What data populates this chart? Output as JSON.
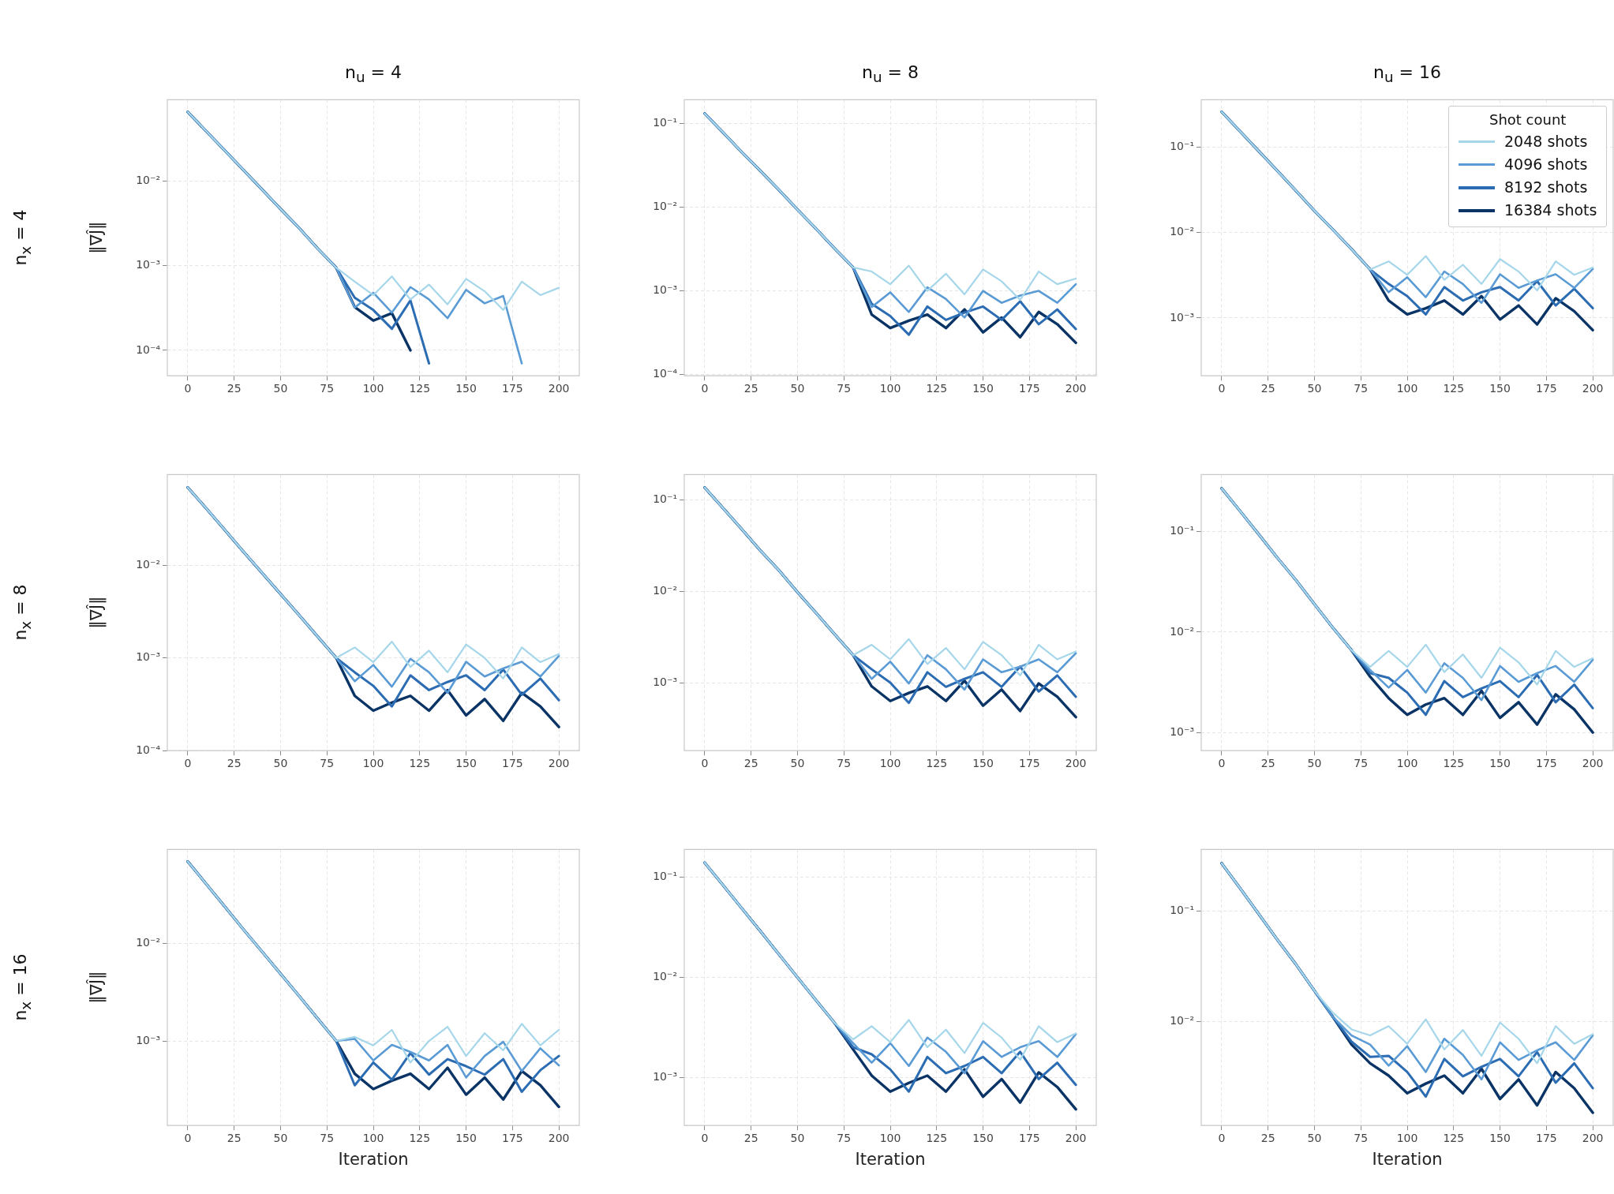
{
  "chart_data": [
    {
      "type": "line",
      "title": "n$_{u}$ = 4",
      "ylabel": "‖∇Ĵ‖",
      "annotations": [
        "n$_{x}$ = 4"
      ],
      "log": "y",
      "grid": true,
      "x": [
        0,
        10,
        20,
        30,
        40,
        50,
        60,
        70,
        80,
        90,
        100,
        110,
        120,
        130,
        140,
        150,
        160,
        170,
        180,
        190,
        200
      ],
      "xlim": [
        -11,
        211
      ],
      "xticks": [
        0,
        25,
        50,
        75,
        100,
        125,
        150,
        175,
        200
      ],
      "ylim": [
        5e-05,
        0.092
      ],
      "yticks": [
        {
          "value": 0.0001,
          "label": "10⁻⁴"
        },
        {
          "value": 0.001,
          "label": "10⁻³"
        },
        {
          "value": 0.01,
          "label": "10⁻²"
        }
      ],
      "series": [
        {
          "color": "#a6d6ea",
          "values": [
            0.066,
            0.039,
            0.023,
            0.0136,
            0.008,
            0.0047,
            0.0028,
            0.0016,
            0.00095,
            0.00065,
            0.00045,
            0.00075,
            0.0004,
            0.0006,
            0.00035,
            0.0007,
            0.0005,
            0.0003,
            0.00065,
            0.00045,
            0.00055
          ]
        },
        {
          "color": "#5b9bd5",
          "values": [
            0.066,
            0.039,
            0.023,
            0.0136,
            0.008,
            0.0047,
            0.0028,
            0.0016,
            0.00095,
            0.00032,
            0.00048,
            0.00028,
            0.00056,
            0.0004,
            0.00024,
            0.00052,
            0.00036,
            0.00044,
            7e-05,
            null,
            null
          ]
        },
        {
          "color": "#2b6cb3",
          "values": [
            0.066,
            0.039,
            0.023,
            0.0136,
            0.008,
            0.0047,
            0.0028,
            0.0016,
            0.00095,
            0.00042,
            0.0003,
            0.00018,
            0.00039,
            7e-05,
            null,
            null,
            null,
            null,
            null,
            null,
            null
          ]
        },
        {
          "color": "#0b3466",
          "values": [
            0.066,
            0.039,
            0.023,
            0.0136,
            0.008,
            0.0047,
            0.0028,
            0.0016,
            0.00095,
            0.000325,
            0.000225,
            0.000275,
            0.0001,
            null,
            null,
            null,
            null,
            null,
            null,
            null,
            null
          ]
        }
      ]
    },
    {
      "type": "line",
      "title": "n$_{u}$ = 8",
      "log": "y",
      "grid": true,
      "x": [
        0,
        10,
        20,
        30,
        40,
        50,
        60,
        70,
        80,
        90,
        100,
        110,
        120,
        130,
        140,
        150,
        160,
        170,
        180,
        190,
        200
      ],
      "xlim": [
        -11,
        211
      ],
      "xticks": [
        0,
        25,
        50,
        75,
        100,
        125,
        150,
        175,
        200
      ],
      "ylim": [
        9.7e-05,
        0.19
      ],
      "yticks": [
        {
          "value": 0.0001,
          "label": "10⁻⁴"
        },
        {
          "value": 0.001,
          "label": "10⁻³"
        },
        {
          "value": 0.01,
          "label": "10⁻²"
        },
        {
          "value": 0.1,
          "label": "10⁻¹"
        }
      ],
      "series": [
        {
          "color": "#a6d6ea",
          "values": [
            0.13,
            0.077,
            0.045,
            0.027,
            0.016,
            0.0093,
            0.0055,
            0.0032,
            0.0019,
            0.0017,
            0.0012,
            0.002,
            0.001,
            0.0016,
            0.00091,
            0.0018,
            0.0013,
            0.00078,
            0.0017,
            0.0012,
            0.0014
          ]
        },
        {
          "color": "#5b9bd5",
          "values": [
            0.13,
            0.077,
            0.045,
            0.027,
            0.016,
            0.0093,
            0.0055,
            0.0032,
            0.0019,
            0.00064,
            0.00096,
            0.00056,
            0.0011,
            0.0008,
            0.00048,
            0.001,
            0.00072,
            0.00088,
            0.001,
            0.00072,
            0.0012
          ]
        },
        {
          "color": "#2b6cb3",
          "values": [
            0.13,
            0.077,
            0.045,
            0.027,
            0.016,
            0.0093,
            0.0055,
            0.0032,
            0.0019,
            0.0007,
            0.0005,
            0.0003,
            0.00065,
            0.00045,
            0.00055,
            0.00065,
            0.00045,
            0.00075,
            0.0004,
            0.0006,
            0.00035
          ]
        },
        {
          "color": "#0b3466",
          "values": [
            0.13,
            0.077,
            0.045,
            0.027,
            0.016,
            0.0093,
            0.0055,
            0.0032,
            0.0019,
            0.00052,
            0.00036,
            0.00044,
            0.00052,
            0.00036,
            0.0006,
            0.00032,
            0.00048,
            0.00028,
            0.00056,
            0.0004,
            0.00024
          ]
        }
      ]
    },
    {
      "type": "line",
      "title": "n$_{u}$ = 16",
      "legend": "top right",
      "legend_title": "Shot count",
      "log": "y",
      "grid": true,
      "x": [
        0,
        10,
        20,
        30,
        40,
        50,
        60,
        70,
        80,
        90,
        100,
        110,
        120,
        130,
        140,
        150,
        160,
        170,
        180,
        190,
        200
      ],
      "xlim": [
        -11,
        211
      ],
      "xticks": [
        0,
        25,
        50,
        75,
        100,
        125,
        150,
        175,
        200
      ],
      "ylim": [
        0.00021,
        0.36
      ],
      "yticks": [
        {
          "value": 0.001,
          "label": "10⁻³"
        },
        {
          "value": 0.01,
          "label": "10⁻²"
        },
        {
          "value": 0.1,
          "label": "10⁻¹"
        }
      ],
      "series": [
        {
          "name": "2048 shots",
          "color": "#a6d6ea",
          "values": [
            0.26,
            0.153,
            0.09,
            0.053,
            0.031,
            0.018,
            0.0108,
            0.0064,
            0.0037,
            0.0046,
            0.0032,
            0.0053,
            0.0028,
            0.0042,
            0.0025,
            0.0049,
            0.0035,
            0.0021,
            0.0046,
            0.0032,
            0.0039
          ]
        },
        {
          "name": "4096 shots",
          "color": "#5b9bd5",
          "values": [
            0.26,
            0.153,
            0.09,
            0.053,
            0.031,
            0.018,
            0.0108,
            0.0064,
            0.0037,
            0.002,
            0.003,
            0.00175,
            0.0035,
            0.0025,
            0.0015,
            0.00325,
            0.00225,
            0.00275,
            0.00325,
            0.00225,
            0.00375
          ]
        },
        {
          "name": "8192 shots",
          "color": "#2b6cb3",
          "values": [
            0.26,
            0.153,
            0.09,
            0.053,
            0.031,
            0.018,
            0.0108,
            0.0064,
            0.0037,
            0.0025,
            0.0018,
            0.0011,
            0.0023,
            0.0016,
            0.002,
            0.0023,
            0.0016,
            0.0027,
            0.0014,
            0.0022,
            0.0013
          ]
        },
        {
          "name": "16384 shots",
          "color": "#0b3466",
          "values": [
            0.26,
            0.153,
            0.09,
            0.053,
            0.031,
            0.018,
            0.0108,
            0.0064,
            0.0037,
            0.0016,
            0.0011,
            0.0013,
            0.0016,
            0.0011,
            0.0018,
            0.00096,
            0.0014,
            0.00084,
            0.0017,
            0.0012,
            0.00072
          ]
        }
      ]
    },
    {
      "type": "line",
      "ylabel": "‖∇Ĵ‖",
      "annotations": [
        "n$_{x}$ = 8"
      ],
      "log": "y",
      "grid": true,
      "x": [
        0,
        10,
        20,
        30,
        40,
        50,
        60,
        70,
        80,
        90,
        100,
        110,
        120,
        130,
        140,
        150,
        160,
        170,
        180,
        190,
        200
      ],
      "xlim": [
        -11,
        211
      ],
      "xticks": [
        0,
        25,
        50,
        75,
        100,
        125,
        150,
        175,
        200
      ],
      "ylim": [
        0.0001,
        0.095
      ],
      "yticks": [
        {
          "value": 0.0001,
          "label": "10⁻⁴"
        },
        {
          "value": 0.001,
          "label": "10⁻³"
        },
        {
          "value": 0.01,
          "label": "10⁻²"
        }
      ],
      "series": [
        {
          "color": "#a6d6ea",
          "values": [
            0.069,
            0.041,
            0.024,
            0.014,
            0.0083,
            0.0049,
            0.0029,
            0.0017,
            0.001,
            0.0013,
            0.0009,
            0.0015,
            0.0008,
            0.0012,
            0.0007,
            0.0014,
            0.001,
            0.0006,
            0.0013,
            0.0009,
            0.0011
          ]
        },
        {
          "color": "#5b9bd5",
          "values": [
            0.069,
            0.041,
            0.024,
            0.014,
            0.0083,
            0.0049,
            0.0029,
            0.0017,
            0.001,
            0.00056,
            0.00084,
            0.00049,
            0.00098,
            0.0007,
            0.00042,
            0.00091,
            0.00063,
            0.00077,
            0.00091,
            0.00063,
            0.00105
          ]
        },
        {
          "color": "#2b6cb3",
          "values": [
            0.069,
            0.041,
            0.024,
            0.014,
            0.0083,
            0.0049,
            0.0029,
            0.0017,
            0.001,
            0.0007,
            0.0005,
            0.0003,
            0.00065,
            0.00045,
            0.00055,
            0.00065,
            0.00045,
            0.00075,
            0.0004,
            0.0006,
            0.00035
          ]
        },
        {
          "color": "#0b3466",
          "values": [
            0.069,
            0.041,
            0.024,
            0.014,
            0.0083,
            0.0049,
            0.0029,
            0.0017,
            0.001,
            0.00039,
            0.00027,
            0.00033,
            0.00039,
            0.00027,
            0.00045,
            0.00024,
            0.00036,
            0.00021,
            0.00042,
            0.0003,
            0.00018
          ]
        }
      ]
    },
    {
      "type": "line",
      "log": "y",
      "grid": true,
      "x": [
        0,
        10,
        20,
        30,
        40,
        50,
        60,
        70,
        80,
        90,
        100,
        110,
        120,
        130,
        140,
        150,
        160,
        170,
        180,
        190,
        200
      ],
      "xlim": [
        -11,
        211
      ],
      "xticks": [
        0,
        25,
        50,
        75,
        100,
        125,
        150,
        175,
        200
      ],
      "ylim": [
        0.00018,
        0.19
      ],
      "yticks": [
        {
          "value": 0.001,
          "label": "10⁻³"
        },
        {
          "value": 0.01,
          "label": "10⁻²"
        },
        {
          "value": 0.1,
          "label": "10⁻¹"
        }
      ],
      "series": [
        {
          "color": "#a6d6ea",
          "values": [
            0.137,
            0.081,
            0.048,
            0.028,
            0.017,
            0.0098,
            0.0058,
            0.0034,
            0.002,
            0.0026,
            0.0018,
            0.003,
            0.0016,
            0.0024,
            0.0014,
            0.0028,
            0.002,
            0.0012,
            0.0026,
            0.0018,
            0.0022
          ]
        },
        {
          "color": "#5b9bd5",
          "values": [
            0.137,
            0.081,
            0.048,
            0.028,
            0.017,
            0.0098,
            0.0058,
            0.0034,
            0.002,
            0.0011,
            0.0017,
            0.00098,
            0.002,
            0.0014,
            0.00084,
            0.0018,
            0.0013,
            0.0015,
            0.0018,
            0.0013,
            0.0021
          ]
        },
        {
          "color": "#2b6cb3",
          "values": [
            0.137,
            0.081,
            0.048,
            0.028,
            0.017,
            0.0098,
            0.0058,
            0.0034,
            0.002,
            0.0014,
            0.001,
            0.0006,
            0.0013,
            0.0009,
            0.0011,
            0.0013,
            0.0009,
            0.0015,
            0.0008,
            0.0012,
            0.0007
          ]
        },
        {
          "color": "#0b3466",
          "values": [
            0.137,
            0.081,
            0.048,
            0.028,
            0.017,
            0.0098,
            0.0058,
            0.0034,
            0.002,
            0.00091,
            0.00063,
            0.00077,
            0.00091,
            0.00063,
            0.00105,
            0.00056,
            0.00084,
            0.00049,
            0.00098,
            0.0007,
            0.00042
          ]
        }
      ]
    },
    {
      "type": "line",
      "log": "y",
      "grid": true,
      "x": [
        0,
        10,
        20,
        30,
        40,
        50,
        60,
        70,
        80,
        90,
        100,
        110,
        120,
        130,
        140,
        150,
        160,
        170,
        180,
        190,
        200
      ],
      "xlim": [
        -11,
        211
      ],
      "xticks": [
        0,
        25,
        50,
        75,
        100,
        125,
        150,
        175,
        200
      ],
      "ylim": [
        0.00066,
        0.37
      ],
      "yticks": [
        {
          "value": 0.001,
          "label": "10⁻³"
        },
        {
          "value": 0.01,
          "label": "10⁻²"
        },
        {
          "value": 0.1,
          "label": "10⁻¹"
        }
      ],
      "series": [
        {
          "color": "#a6d6ea",
          "values": [
            0.27,
            0.16,
            0.094,
            0.055,
            0.033,
            0.019,
            0.011,
            0.0066,
            0.0045,
            0.0065,
            0.0045,
            0.0075,
            0.004,
            0.006,
            0.0035,
            0.007,
            0.005,
            0.003,
            0.0065,
            0.0045,
            0.0055
          ]
        },
        {
          "color": "#5b9bd5",
          "values": [
            0.27,
            0.16,
            0.094,
            0.055,
            0.033,
            0.019,
            0.011,
            0.0066,
            0.0042,
            0.0028,
            0.0042,
            0.0025,
            0.0049,
            0.0035,
            0.0021,
            0.0046,
            0.0032,
            0.0039,
            0.0046,
            0.0032,
            0.0053
          ]
        },
        {
          "color": "#2b6cb3",
          "values": [
            0.27,
            0.16,
            0.094,
            0.055,
            0.033,
            0.019,
            0.011,
            0.0066,
            0.0039,
            0.0035,
            0.0025,
            0.0015,
            0.00325,
            0.00225,
            0.00275,
            0.00325,
            0.00225,
            0.00375,
            0.002,
            0.003,
            0.00175
          ]
        },
        {
          "color": "#0b3466",
          "values": [
            0.27,
            0.16,
            0.094,
            0.055,
            0.033,
            0.019,
            0.011,
            0.0066,
            0.0036,
            0.0022,
            0.0015,
            0.0019,
            0.0022,
            0.0015,
            0.0026,
            0.0014,
            0.002,
            0.0012,
            0.0024,
            0.0017,
            0.001
          ]
        }
      ]
    },
    {
      "type": "line",
      "xlabel": "Iteration",
      "ylabel": "‖∇Ĵ‖",
      "annotations": [
        "n$_{x}$ = 16"
      ],
      "log": "y",
      "grid": true,
      "x": [
        0,
        10,
        20,
        30,
        40,
        50,
        60,
        70,
        80,
        90,
        100,
        110,
        120,
        130,
        140,
        150,
        160,
        170,
        180,
        190,
        200
      ],
      "xlim": [
        -11,
        211
      ],
      "xticks": [
        0,
        25,
        50,
        75,
        100,
        125,
        150,
        175,
        200
      ],
      "ylim": [
        0.000135,
        0.093
      ],
      "yticks": [
        {
          "value": 0.001,
          "label": "10⁻³"
        },
        {
          "value": 0.01,
          "label": "10⁻²"
        }
      ],
      "series": [
        {
          "color": "#a6d6ea",
          "values": [
            0.07,
            0.041,
            0.024,
            0.014,
            0.0083,
            0.0049,
            0.0029,
            0.0017,
            0.001,
            0.0011,
            0.0009,
            0.0013,
            0.0006,
            0.001,
            0.0014,
            0.0007,
            0.0012,
            0.0008,
            0.0015,
            0.0009,
            0.0013
          ]
        },
        {
          "color": "#5b9bd5",
          "values": [
            0.07,
            0.041,
            0.024,
            0.014,
            0.0083,
            0.0049,
            0.0029,
            0.0017,
            0.001,
            0.00105,
            0.00063,
            0.00091,
            0.00077,
            0.00063,
            0.00091,
            0.00042,
            0.0007,
            0.00098,
            0.00049,
            0.00084,
            0.00056
          ]
        },
        {
          "color": "#2b6cb3",
          "values": [
            0.07,
            0.041,
            0.024,
            0.014,
            0.0083,
            0.0049,
            0.0029,
            0.0017,
            0.001,
            0.00035,
            0.0006,
            0.0004,
            0.00075,
            0.00045,
            0.00065,
            0.00055,
            0.00045,
            0.00065,
            0.0003,
            0.0005,
            0.0007
          ]
        },
        {
          "color": "#0b3466",
          "values": [
            0.07,
            0.041,
            0.024,
            0.014,
            0.0083,
            0.0049,
            0.0029,
            0.0017,
            0.001,
            0.00046,
            0.00032,
            0.00039,
            0.00046,
            0.00032,
            0.00053,
            0.00028,
            0.00042,
            0.00025,
            0.00049,
            0.00035,
            0.00021
          ]
        }
      ]
    },
    {
      "type": "line",
      "xlabel": "Iteration",
      "log": "y",
      "grid": true,
      "x": [
        0,
        10,
        20,
        30,
        40,
        50,
        60,
        70,
        80,
        90,
        100,
        110,
        120,
        130,
        140,
        150,
        160,
        170,
        180,
        190,
        200
      ],
      "xlim": [
        -11,
        211
      ],
      "xticks": [
        0,
        25,
        50,
        75,
        100,
        125,
        150,
        175,
        200
      ],
      "ylim": [
        0.00033,
        0.19
      ],
      "yticks": [
        {
          "value": 0.001,
          "label": "10⁻³"
        },
        {
          "value": 0.01,
          "label": "10⁻²"
        },
        {
          "value": 0.1,
          "label": "10⁻¹"
        }
      ],
      "series": [
        {
          "color": "#a6d6ea",
          "values": [
            0.14,
            0.083,
            0.049,
            0.029,
            0.017,
            0.01,
            0.0059,
            0.0035,
            0.0024,
            0.00325,
            0.00225,
            0.00375,
            0.002,
            0.003,
            0.00175,
            0.0035,
            0.0025,
            0.0015,
            0.00325,
            0.00225,
            0.00275
          ]
        },
        {
          "color": "#5b9bd5",
          "values": [
            0.14,
            0.083,
            0.049,
            0.029,
            0.017,
            0.01,
            0.0059,
            0.0035,
            0.0022,
            0.0014,
            0.0022,
            0.0013,
            0.0025,
            0.0018,
            0.0011,
            0.0023,
            0.0016,
            0.002,
            0.0023,
            0.0016,
            0.0027
          ]
        },
        {
          "color": "#2b6cb3",
          "values": [
            0.14,
            0.083,
            0.049,
            0.029,
            0.017,
            0.01,
            0.0059,
            0.0035,
            0.002,
            0.0017,
            0.0012,
            0.00072,
            0.0016,
            0.0011,
            0.0013,
            0.0016,
            0.0011,
            0.0018,
            0.00096,
            0.0014,
            0.00084
          ]
        },
        {
          "color": "#0b3466",
          "values": [
            0.14,
            0.083,
            0.049,
            0.029,
            0.017,
            0.01,
            0.0059,
            0.0035,
            0.0019,
            0.00104,
            0.00072,
            0.00088,
            0.00104,
            0.00072,
            0.0012,
            0.00064,
            0.00096,
            0.00056,
            0.00112,
            0.0008,
            0.00048
          ]
        }
      ]
    },
    {
      "type": "line",
      "xlabel": "Iteration",
      "log": "y",
      "grid": true,
      "x": [
        0,
        10,
        20,
        30,
        40,
        50,
        60,
        70,
        80,
        90,
        100,
        110,
        120,
        130,
        140,
        150,
        160,
        170,
        180,
        190,
        200
      ],
      "xlim": [
        -11,
        211
      ],
      "xticks": [
        0,
        25,
        50,
        75,
        100,
        125,
        150,
        175,
        200
      ],
      "ylim": [
        0.00115,
        0.36
      ],
      "yticks": [
        {
          "value": 0.01,
          "label": "10⁻²"
        },
        {
          "value": 0.1,
          "label": "10⁻¹"
        }
      ],
      "series": [
        {
          "color": "#a6d6ea",
          "values": [
            0.27,
            0.16,
            0.094,
            0.055,
            0.033,
            0.019,
            0.012,
            0.0085,
            0.0075,
            0.0091,
            0.0063,
            0.0105,
            0.0056,
            0.0084,
            0.0049,
            0.0098,
            0.007,
            0.0042,
            0.0091,
            0.0063,
            0.0077
          ]
        },
        {
          "color": "#5b9bd5",
          "values": [
            0.27,
            0.16,
            0.094,
            0.055,
            0.033,
            0.019,
            0.011,
            0.0075,
            0.0062,
            0.004,
            0.006,
            0.0035,
            0.007,
            0.005,
            0.003,
            0.0065,
            0.0045,
            0.0055,
            0.0065,
            0.0045,
            0.0075
          ]
        },
        {
          "color": "#2b6cb3",
          "values": [
            0.27,
            0.16,
            0.094,
            0.055,
            0.033,
            0.019,
            0.011,
            0.0066,
            0.0048,
            0.0049,
            0.0035,
            0.0021,
            0.0046,
            0.0032,
            0.0039,
            0.0046,
            0.0032,
            0.0053,
            0.0028,
            0.0042,
            0.0025
          ]
        },
        {
          "color": "#0b3466",
          "values": [
            0.27,
            0.16,
            0.094,
            0.055,
            0.033,
            0.019,
            0.011,
            0.0062,
            0.0042,
            0.00325,
            0.00225,
            0.00275,
            0.00325,
            0.00225,
            0.00375,
            0.002,
            0.003,
            0.00175,
            0.0035,
            0.0025,
            0.0015
          ]
        }
      ]
    }
  ]
}
